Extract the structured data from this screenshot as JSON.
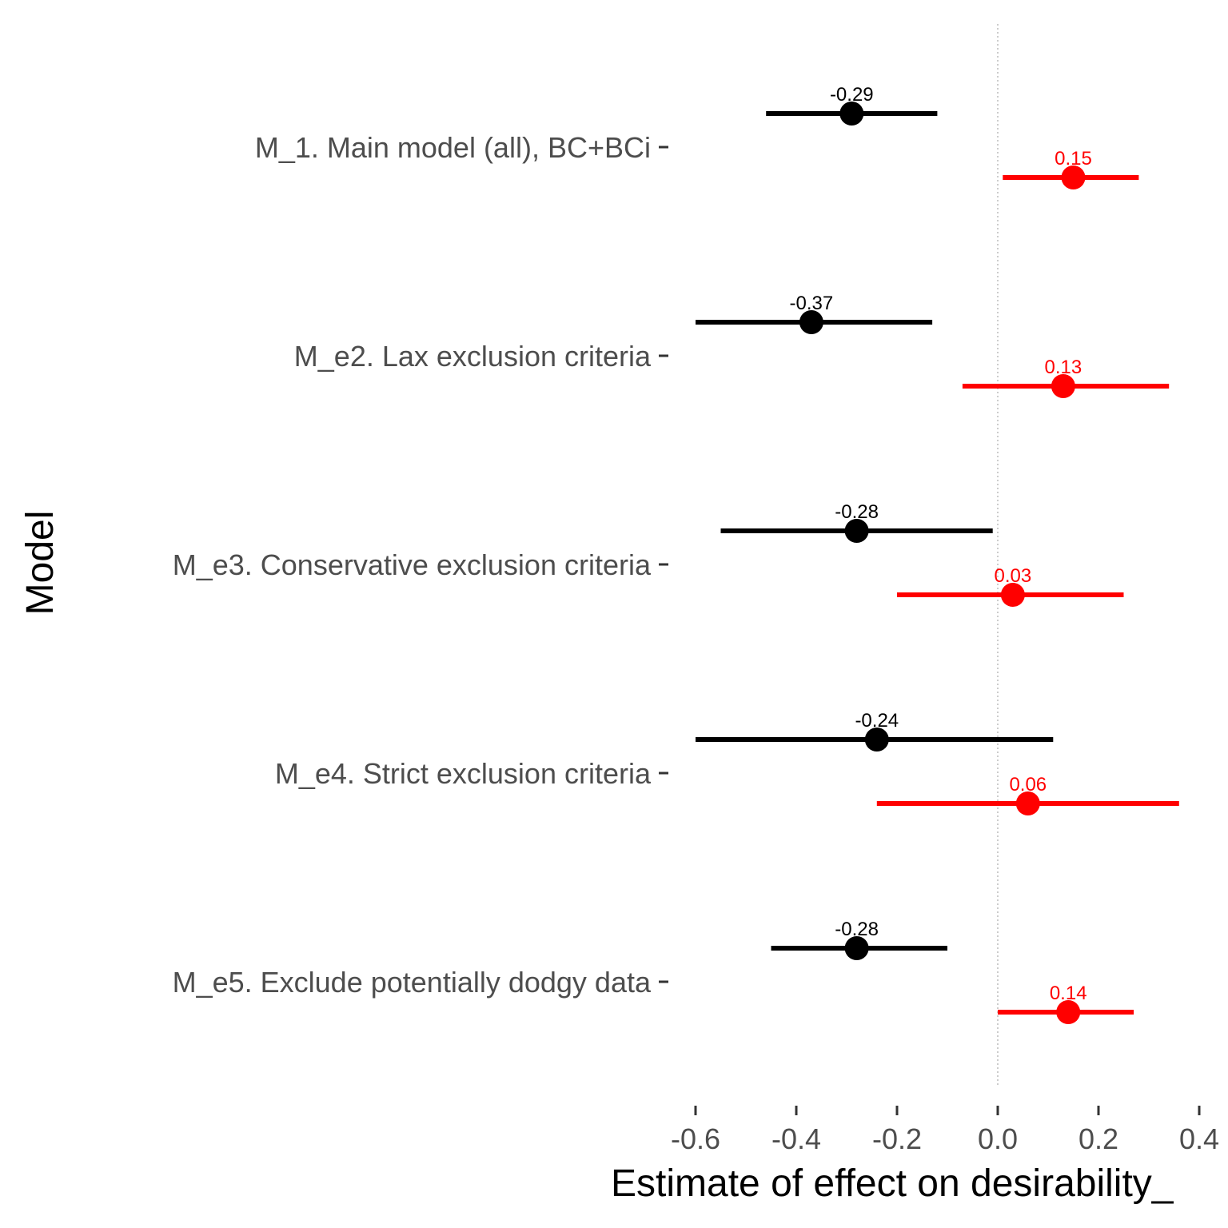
{
  "chart_data": {
    "type": "scatter",
    "subtype": "coefficient-plot",
    "xlabel": "Estimate of effect on desirability_",
    "ylabel": "Model",
    "xlim": [
      -0.6,
      0.4
    ],
    "xticks": [
      -0.6,
      -0.4,
      -0.2,
      0.0,
      0.2,
      0.4
    ],
    "xtick_labels": [
      "-0.6",
      "-0.4",
      "-0.2",
      "0.0",
      "0.2",
      "0.4"
    ],
    "reference_line": 0,
    "grid": false,
    "legend": "none",
    "categories": [
      "M_1. Main model (all), BC+BCi",
      "M_e2. Lax exclusion criteria",
      "M_e3. Conservative exclusion criteria",
      "M_e4. Strict exclusion criteria",
      "M_e5. Exclude potentially dodgy data"
    ],
    "series": [
      {
        "color": "#000000",
        "points": [
          {
            "estimate": -0.29,
            "lower": -0.46,
            "upper": -0.12,
            "label": "-0.29"
          },
          {
            "estimate": -0.37,
            "lower": -0.6,
            "upper": -0.13,
            "label": "-0.37"
          },
          {
            "estimate": -0.28,
            "lower": -0.55,
            "upper": -0.01,
            "label": "-0.28"
          },
          {
            "estimate": -0.24,
            "lower": -0.6,
            "upper": 0.11,
            "label": "-0.24"
          },
          {
            "estimate": -0.28,
            "lower": -0.45,
            "upper": -0.1,
            "label": "-0.28"
          }
        ]
      },
      {
        "color": "#ff0000",
        "points": [
          {
            "estimate": 0.15,
            "lower": 0.01,
            "upper": 0.28,
            "label": "0.15"
          },
          {
            "estimate": 0.13,
            "lower": -0.07,
            "upper": 0.34,
            "label": "0.13"
          },
          {
            "estimate": 0.03,
            "lower": -0.2,
            "upper": 0.25,
            "label": "0.03"
          },
          {
            "estimate": 0.06,
            "lower": -0.24,
            "upper": 0.36,
            "label": "0.06"
          },
          {
            "estimate": 0.14,
            "lower": 0.0,
            "upper": 0.27,
            "label": "0.14"
          }
        ]
      }
    ]
  }
}
